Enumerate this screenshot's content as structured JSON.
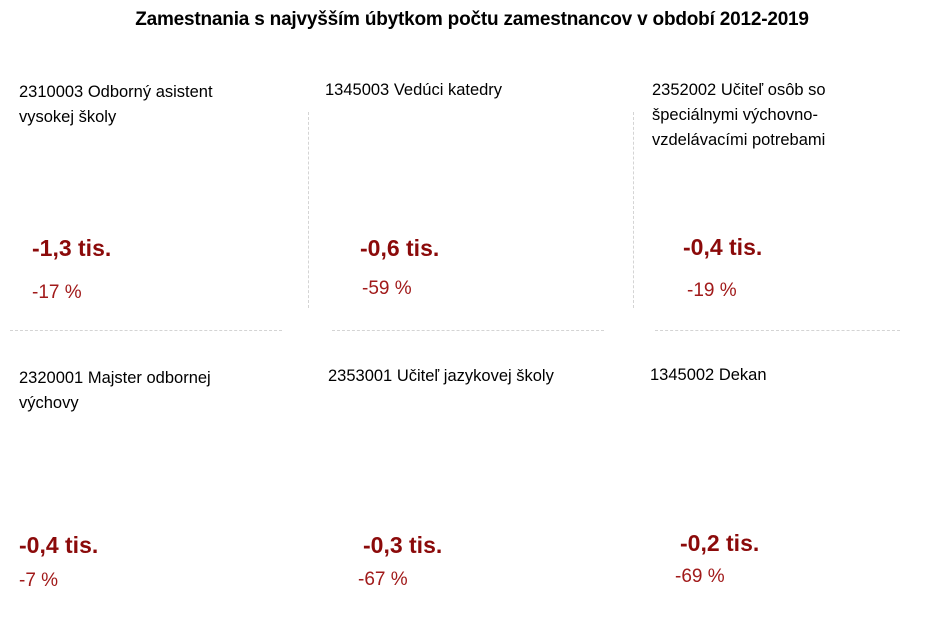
{
  "title": "Zamestnania s najvyšším úbytkom počtu zamestnancov v období 2012-2019",
  "colors": {
    "change": "#8b0a0a",
    "percent": "#a11a1a",
    "divider": "#d4d4d4"
  },
  "chart_data": {
    "type": "table",
    "title": "Zamestnania s najvyšším úbytkom počtu zamestnancov v období 2012-2019",
    "rows": [
      {
        "occupation": "2310003 Odborný asistent vysokej školy",
        "change": "-1,3 tis.",
        "percent": "-17 %"
      },
      {
        "occupation": "1345003 Vedúci katedry",
        "change": "-0,6 tis.",
        "percent": "-59 %"
      },
      {
        "occupation": "2352002 Učiteľ osôb so špeciálnymi výchovno-vzdelávacími potrebami",
        "change": "-0,4 tis.",
        "percent": "-19 %"
      },
      {
        "occupation": "2320001 Majster odbornej výchovy",
        "change": "-0,4 tis.",
        "percent": "-7 %"
      },
      {
        "occupation": "2353001 Učiteľ jazykovej školy",
        "change": "-0,3 tis.",
        "percent": "-67 %"
      },
      {
        "occupation": "1345002 Dekan",
        "change": "-0,2 tis.",
        "percent": "-69 %"
      }
    ]
  }
}
